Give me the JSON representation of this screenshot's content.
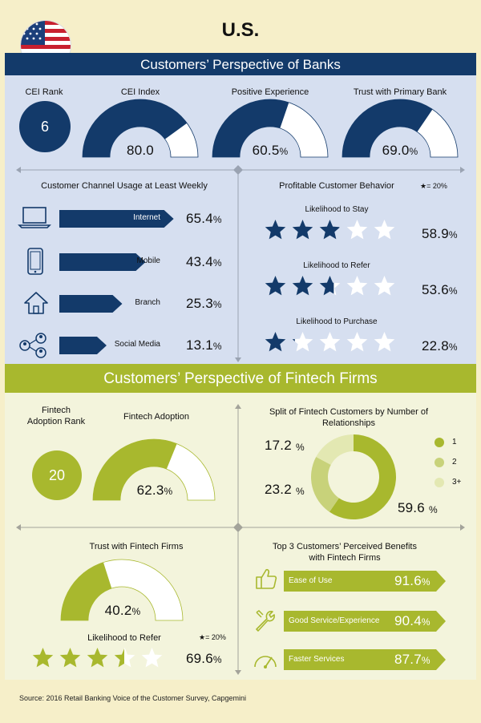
{
  "header": {
    "country": "U.S."
  },
  "banks": {
    "section_title": "Customers’ Perspective of Banks",
    "cei_rank": {
      "label": "CEI Rank",
      "value": "6"
    },
    "cei_index": {
      "label": "CEI Index",
      "value": "80.0",
      "fill": 0.8
    },
    "positive_experience": {
      "label": "Positive Experience",
      "value": "60.5",
      "unit": "%",
      "fill": 0.605
    },
    "trust_primary_bank": {
      "label": "Trust with Primary Bank",
      "value": "69.0",
      "unit": "%",
      "fill": 0.69
    },
    "channels": {
      "title": "Customer Channel Usage at Least Weekly",
      "items": [
        {
          "label": "Internet",
          "value": "65.4",
          "unit": "%",
          "fill": 0.654,
          "icon": "laptop-icon"
        },
        {
          "label": "Mobile",
          "value": "43.4",
          "unit": "%",
          "fill": 0.434,
          "icon": "mobile-phone-icon"
        },
        {
          "label": "Branch",
          "value": "25.3",
          "unit": "%",
          "fill": 0.253,
          "icon": "house-icon"
        },
        {
          "label": "Social Media",
          "value": "13.1",
          "unit": "%",
          "fill": 0.131,
          "icon": "social-network-icon"
        }
      ]
    },
    "behavior": {
      "title": "Profitable Customer Behavior",
      "legend": "= 20%",
      "items": [
        {
          "label": "Likelihood to Stay",
          "value": "58.9",
          "unit": "%",
          "stars": 2.945
        },
        {
          "label": "Likelihood to Refer",
          "value": "53.6",
          "unit": "%",
          "stars": 2.68
        },
        {
          "label": "Likelihood to Purchase",
          "value": "22.8",
          "unit": "%",
          "stars": 1.14
        }
      ]
    }
  },
  "fintech": {
    "section_title": "Customers’ Perspective of Fintech Firms",
    "adoption_rank": {
      "label": "Fintech Adoption Rank",
      "value": "20"
    },
    "adoption": {
      "label": "Fintech Adoption",
      "value": "62.3",
      "unit": "%",
      "fill": 0.623
    },
    "split": {
      "title": "Split of Fintech Customers by Number of Relationships",
      "slices": [
        {
          "label": "1",
          "value": "59.6",
          "number": 59.6,
          "color": "#a8b82e"
        },
        {
          "label": "2",
          "value": "23.2",
          "number": 23.2,
          "color": "#c8d27a"
        },
        {
          "label": "3+",
          "value": "17.2",
          "number": 17.2,
          "color": "#e3e8b2"
        }
      ]
    },
    "trust": {
      "label": "Trust with Fintech Firms",
      "value": "40.2",
      "unit": "%",
      "fill": 0.402
    },
    "refer": {
      "label": "Likelihood to Refer",
      "value": "69.6",
      "unit": "%",
      "stars": 3.48,
      "legend": "= 20%"
    },
    "benefits": {
      "title": "Top 3 Customers’ Perceived Benefits with Fintech Firms",
      "items": [
        {
          "label": "Ease of Use",
          "value": "91.6",
          "unit": "%",
          "icon": "thumbs-up-icon"
        },
        {
          "label": "Good Service/Experience",
          "value": "90.4",
          "unit": "%",
          "icon": "wrench-icon"
        },
        {
          "label": "Faster Services",
          "value": "87.7",
          "unit": "%",
          "icon": "speedometer-icon"
        }
      ]
    }
  },
  "footer": {
    "source": "Source: 2016 Retail Banking Voice of the Customer Survey, Capgemini"
  },
  "colors": {
    "navy": "#133a6a",
    "banks_bg": "#d6dff0",
    "olive": "#a8b82e",
    "fintech_bg": "#f3f4dc",
    "cream": "#f6efc9"
  }
}
